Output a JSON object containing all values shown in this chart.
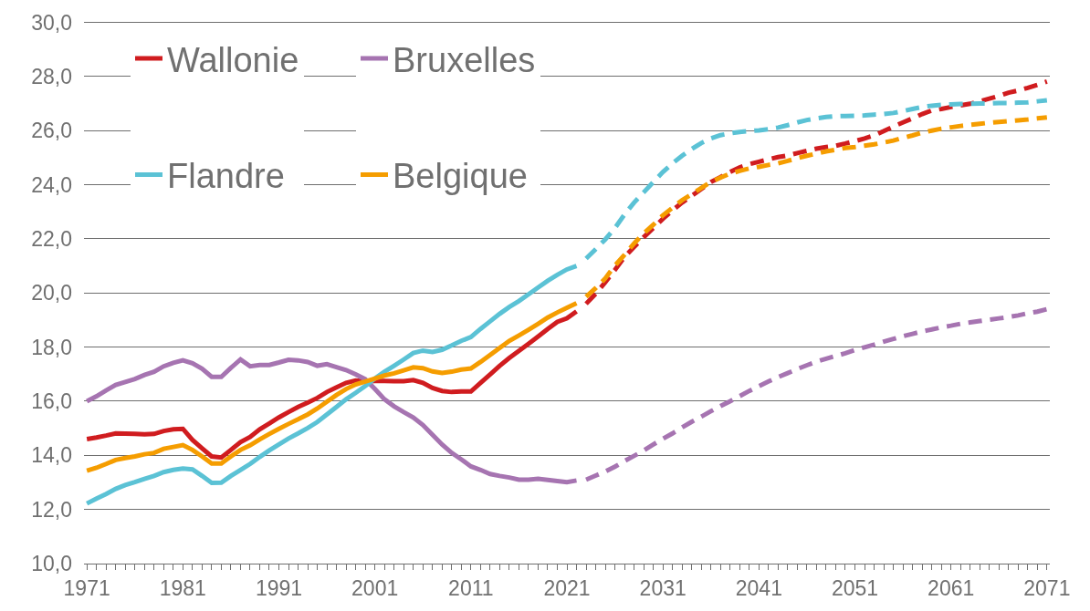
{
  "chart_data": {
    "type": "line",
    "legend": "top left",
    "grid": "y",
    "xlim": [
      1970.7,
      2071.3
    ],
    "ylim": [
      10,
      30.05
    ],
    "xticks": [
      1971,
      {
        "value": 1972,
        "label": null
      },
      {
        "value": 1973,
        "label": null
      },
      {
        "value": 1974,
        "label": null
      },
      {
        "value": 1975,
        "label": null
      },
      {
        "value": 1976,
        "label": null
      },
      {
        "value": 1977,
        "label": null
      },
      {
        "value": 1978,
        "label": null
      },
      {
        "value": 1979,
        "label": null
      },
      {
        "value": 1980,
        "label": null
      },
      1981,
      {
        "value": 1982,
        "label": null
      },
      {
        "value": 1983,
        "label": null
      },
      {
        "value": 1984,
        "label": null
      },
      {
        "value": 1985,
        "label": null
      },
      {
        "value": 1986,
        "label": null
      },
      {
        "value": 1987,
        "label": null
      },
      {
        "value": 1988,
        "label": null
      },
      {
        "value": 1989,
        "label": null
      },
      {
        "value": 1990,
        "label": null
      },
      1991,
      {
        "value": 1992,
        "label": null
      },
      {
        "value": 1993,
        "label": null
      },
      {
        "value": 1994,
        "label": null
      },
      {
        "value": 1995,
        "label": null
      },
      {
        "value": 1996,
        "label": null
      },
      {
        "value": 1997,
        "label": null
      },
      {
        "value": 1998,
        "label": null
      },
      {
        "value": 1999,
        "label": null
      },
      {
        "value": 2000,
        "label": null
      },
      2001,
      {
        "value": 2002,
        "label": null
      },
      {
        "value": 2003,
        "label": null
      },
      {
        "value": 2004,
        "label": null
      },
      {
        "value": 2005,
        "label": null
      },
      {
        "value": 2006,
        "label": null
      },
      {
        "value": 2007,
        "label": null
      },
      {
        "value": 2008,
        "label": null
      },
      {
        "value": 2009,
        "label": null
      },
      {
        "value": 2010,
        "label": null
      },
      2011,
      {
        "value": 2012,
        "label": null
      },
      {
        "value": 2013,
        "label": null
      },
      {
        "value": 2014,
        "label": null
      },
      {
        "value": 2015,
        "label": null
      },
      {
        "value": 2016,
        "label": null
      },
      {
        "value": 2017,
        "label": null
      },
      {
        "value": 2018,
        "label": null
      },
      {
        "value": 2019,
        "label": null
      },
      {
        "value": 2020,
        "label": null
      },
      2021,
      {
        "value": 2022,
        "label": null
      },
      {
        "value": 2023,
        "label": null
      },
      {
        "value": 2024,
        "label": null
      },
      {
        "value": 2025,
        "label": null
      },
      {
        "value": 2026,
        "label": null
      },
      {
        "value": 2027,
        "label": null
      },
      {
        "value": 2028,
        "label": null
      },
      {
        "value": 2029,
        "label": null
      },
      {
        "value": 2030,
        "label": null
      },
      2031,
      {
        "value": 2032,
        "label": null
      },
      {
        "value": 2033,
        "label": null
      },
      {
        "value": 2034,
        "label": null
      },
      {
        "value": 2035,
        "label": null
      },
      {
        "value": 2036,
        "label": null
      },
      {
        "value": 2037,
        "label": null
      },
      {
        "value": 2038,
        "label": null
      },
      {
        "value": 2039,
        "label": null
      },
      {
        "value": 2040,
        "label": null
      },
      2041,
      {
        "value": 2042,
        "label": null
      },
      {
        "value": 2043,
        "label": null
      },
      {
        "value": 2044,
        "label": null
      },
      {
        "value": 2045,
        "label": null
      },
      {
        "value": 2046,
        "label": null
      },
      {
        "value": 2047,
        "label": null
      },
      {
        "value": 2048,
        "label": null
      },
      {
        "value": 2049,
        "label": null
      },
      {
        "value": 2050,
        "label": null
      },
      2051,
      {
        "value": 2052,
        "label": null
      },
      {
        "value": 2053,
        "label": null
      },
      {
        "value": 2054,
        "label": null
      },
      {
        "value": 2055,
        "label": null
      },
      {
        "value": 2056,
        "label": null
      },
      {
        "value": 2057,
        "label": null
      },
      {
        "value": 2058,
        "label": null
      },
      {
        "value": 2059,
        "label": null
      },
      {
        "value": 2060,
        "label": null
      },
      2061,
      {
        "value": 2062,
        "label": null
      },
      {
        "value": 2063,
        "label": null
      },
      {
        "value": 2064,
        "label": null
      },
      {
        "value": 2065,
        "label": null
      },
      {
        "value": 2066,
        "label": null
      },
      {
        "value": 2067,
        "label": null
      },
      {
        "value": 2068,
        "label": null
      },
      {
        "value": 2069,
        "label": null
      },
      {
        "value": 2070,
        "label": null
      },
      2071
    ],
    "yticks": [
      {
        "value": 10,
        "label": "10,0"
      },
      {
        "value": 12,
        "label": "12,0"
      },
      {
        "value": 14,
        "label": "14,0"
      },
      {
        "value": 16,
        "label": "16,0"
      },
      {
        "value": 18,
        "label": "18,0"
      },
      {
        "value": 20,
        "label": "20,0"
      },
      {
        "value": 22,
        "label": "22,0"
      },
      {
        "value": 24,
        "label": "24,0"
      },
      {
        "value": 26,
        "label": "26,0"
      },
      {
        "value": 28,
        "label": "28,0"
      },
      {
        "value": 30,
        "label": "30,0"
      }
    ],
    "series": [
      {
        "name": "Wallonie",
        "color": "#d01c1f",
        "line_style": "solid",
        "x": [
          1971,
          1972,
          1973,
          1974,
          1975,
          1976,
          1977,
          1978,
          1979,
          1980,
          1981,
          1982,
          1983,
          1984,
          1985,
          1986,
          1987,
          1988,
          1989,
          1990,
          1991,
          1992,
          1993,
          1994,
          1995,
          1996,
          1997,
          1998,
          1999,
          2000,
          2001,
          2002,
          2003,
          2004,
          2005,
          2006,
          2007,
          2008,
          2009,
          2010,
          2011,
          2012,
          2013,
          2014,
          2015,
          2016,
          2017,
          2018,
          2019,
          2020,
          2021,
          2022
        ],
        "values": [
          14.6,
          14.66,
          14.73,
          14.81,
          14.8,
          14.79,
          14.78,
          14.79,
          14.9,
          14.96,
          14.98,
          14.57,
          14.26,
          13.96,
          13.92,
          14.2,
          14.49,
          14.68,
          14.96,
          15.18,
          15.4,
          15.6,
          15.79,
          15.95,
          16.12,
          16.34,
          16.51,
          16.68,
          16.76,
          16.73,
          16.75,
          16.75,
          16.74,
          16.74,
          16.78,
          16.68,
          16.49,
          16.38,
          16.34,
          16.36,
          16.36,
          16.68,
          16.99,
          17.31,
          17.6,
          17.86,
          18.12,
          18.39,
          18.67,
          18.93,
          19.06,
          19.32
        ]
      },
      {
        "name": "Bruxelles",
        "color": "#a674b1",
        "line_style": "solid",
        "x": [
          1971,
          1972,
          1973,
          1974,
          1975,
          1976,
          1977,
          1978,
          1979,
          1980,
          1981,
          1982,
          1983,
          1984,
          1985,
          1986,
          1987,
          1988,
          1989,
          1990,
          1991,
          1992,
          1993,
          1994,
          1995,
          1996,
          1997,
          1998,
          1999,
          2000,
          2001,
          2002,
          2003,
          2004,
          2005,
          2006,
          2007,
          2008,
          2009,
          2010,
          2011,
          2012,
          2013,
          2014,
          2015,
          2016,
          2017,
          2018,
          2019,
          2020,
          2021,
          2022
        ],
        "values": [
          16.0,
          16.18,
          16.4,
          16.6,
          16.71,
          16.82,
          16.97,
          17.09,
          17.29,
          17.42,
          17.51,
          17.4,
          17.2,
          16.9,
          16.9,
          17.23,
          17.54,
          17.29,
          17.34,
          17.34,
          17.43,
          17.53,
          17.51,
          17.45,
          17.31,
          17.37,
          17.26,
          17.15,
          16.99,
          16.81,
          16.45,
          16.07,
          15.81,
          15.6,
          15.4,
          15.12,
          14.76,
          14.4,
          14.09,
          13.85,
          13.59,
          13.46,
          13.31,
          13.24,
          13.18,
          13.1,
          13.1,
          13.13,
          13.09,
          13.05,
          13.01,
          13.07
        ]
      },
      {
        "name": "Flandre",
        "color": "#5bc2d5",
        "line_style": "solid",
        "x": [
          1971,
          1972,
          1973,
          1974,
          1975,
          1976,
          1977,
          1978,
          1979,
          1980,
          1981,
          1982,
          1983,
          1984,
          1985,
          1986,
          1987,
          1988,
          1989,
          1990,
          1991,
          1992,
          1993,
          1994,
          1995,
          1996,
          1997,
          1998,
          1999,
          2000,
          2001,
          2002,
          2003,
          2004,
          2005,
          2006,
          2007,
          2008,
          2009,
          2010,
          2011,
          2012,
          2013,
          2014,
          2015,
          2016,
          2017,
          2018,
          2019,
          2020,
          2021,
          2022
        ],
        "values": [
          12.22,
          12.4,
          12.57,
          12.76,
          12.9,
          13.01,
          13.13,
          13.24,
          13.38,
          13.46,
          13.51,
          13.48,
          13.24,
          12.98,
          12.99,
          13.24,
          13.46,
          13.68,
          13.94,
          14.18,
          14.4,
          14.62,
          14.81,
          15.01,
          15.23,
          15.51,
          15.79,
          16.07,
          16.31,
          16.56,
          16.84,
          17.09,
          17.31,
          17.54,
          17.78,
          17.87,
          17.82,
          17.9,
          18.06,
          18.23,
          18.37,
          18.67,
          18.95,
          19.23,
          19.48,
          19.7,
          19.95,
          20.2,
          20.45,
          20.67,
          20.87,
          21.0
        ]
      },
      {
        "name": "Belgique",
        "color": "#f59d00",
        "line_style": "solid",
        "x": [
          1971,
          1972,
          1973,
          1974,
          1975,
          1976,
          1977,
          1978,
          1979,
          1980,
          1981,
          1982,
          1983,
          1984,
          1985,
          1986,
          1987,
          1988,
          1989,
          1990,
          1991,
          1992,
          1993,
          1994,
          1995,
          1996,
          1997,
          1998,
          1999,
          2000,
          2001,
          2002,
          2003,
          2004,
          2005,
          2006,
          2007,
          2008,
          2009,
          2010,
          2011,
          2012,
          2013,
          2014,
          2015,
          2016,
          2017,
          2018,
          2019,
          2020,
          2021,
          2022
        ],
        "values": [
          13.43,
          13.54,
          13.68,
          13.83,
          13.9,
          13.96,
          14.04,
          14.09,
          14.24,
          14.31,
          14.38,
          14.2,
          13.96,
          13.7,
          13.7,
          13.96,
          14.2,
          14.37,
          14.59,
          14.79,
          14.98,
          15.16,
          15.33,
          15.51,
          15.73,
          15.98,
          16.23,
          16.45,
          16.62,
          16.73,
          16.84,
          16.95,
          17.03,
          17.14,
          17.25,
          17.22,
          17.1,
          17.04,
          17.09,
          17.17,
          17.21,
          17.45,
          17.71,
          17.97,
          18.23,
          18.43,
          18.64,
          18.86,
          19.09,
          19.28,
          19.45,
          19.62
        ]
      },
      {
        "color": "#d01c1f",
        "line_style": "dashed",
        "x": [
          2023,
          2024,
          2025,
          2026,
          2027,
          2028,
          2029,
          2030,
          2031,
          2032,
          2033,
          2034,
          2035,
          2036,
          2037,
          2038,
          2039,
          2040,
          2041,
          2042,
          2043,
          2044,
          2045,
          2046,
          2047,
          2048,
          2049,
          2050,
          2051,
          2052,
          2053,
          2054,
          2055,
          2056,
          2057,
          2058,
          2059,
          2060,
          2061,
          2062,
          2063,
          2064,
          2065,
          2066,
          2067,
          2068,
          2069,
          2070,
          2071
        ],
        "values": [
          19.6,
          19.97,
          20.4,
          20.85,
          21.33,
          21.7,
          22.06,
          22.4,
          22.74,
          23.05,
          23.34,
          23.59,
          23.84,
          24.1,
          24.28,
          24.47,
          24.64,
          24.76,
          24.85,
          24.94,
          25.02,
          25.08,
          25.17,
          25.25,
          25.33,
          25.39,
          25.44,
          25.52,
          25.61,
          25.71,
          25.82,
          25.98,
          26.15,
          26.3,
          26.45,
          26.61,
          26.74,
          26.8,
          26.87,
          26.93,
          26.99,
          27.08,
          27.18,
          27.28,
          27.4,
          27.48,
          27.58,
          27.69,
          27.81
        ]
      },
      {
        "color": "#a674b1",
        "line_style": "dashed",
        "x": [
          2023,
          2024,
          2025,
          2026,
          2027,
          2028,
          2029,
          2030,
          2031,
          2032,
          2033,
          2034,
          2035,
          2036,
          2037,
          2038,
          2039,
          2040,
          2041,
          2042,
          2043,
          2044,
          2045,
          2046,
          2047,
          2048,
          2049,
          2050,
          2051,
          2052,
          2053,
          2054,
          2055,
          2056,
          2057,
          2058,
          2059,
          2060,
          2061,
          2062,
          2063,
          2064,
          2065,
          2066,
          2067,
          2068,
          2069,
          2070,
          2071
        ],
        "values": [
          13.1,
          13.25,
          13.4,
          13.58,
          13.79,
          13.98,
          14.18,
          14.4,
          14.61,
          14.81,
          15.03,
          15.24,
          15.43,
          15.63,
          15.82,
          16.0,
          16.19,
          16.38,
          16.56,
          16.73,
          16.89,
          17.04,
          17.19,
          17.33,
          17.46,
          17.57,
          17.67,
          17.77,
          17.89,
          17.99,
          18.09,
          18.2,
          18.3,
          18.4,
          18.49,
          18.58,
          18.65,
          18.73,
          18.79,
          18.86,
          18.91,
          18.96,
          19.01,
          19.06,
          19.11,
          19.17,
          19.25,
          19.31,
          19.4
        ]
      },
      {
        "color": "#5bc2d5",
        "line_style": "dashed",
        "x": [
          2023,
          2024,
          2025,
          2026,
          2027,
          2028,
          2029,
          2030,
          2031,
          2032,
          2033,
          2034,
          2035,
          2036,
          2037,
          2038,
          2039,
          2040,
          2041,
          2042,
          2043,
          2044,
          2045,
          2046,
          2047,
          2048,
          2049,
          2050,
          2051,
          2052,
          2053,
          2054,
          2055,
          2056,
          2057,
          2058,
          2059,
          2060,
          2061,
          2062,
          2063,
          2064,
          2065,
          2066,
          2067,
          2068,
          2069,
          2070,
          2071
        ],
        "values": [
          21.27,
          21.62,
          21.98,
          22.4,
          22.9,
          23.34,
          23.72,
          24.1,
          24.47,
          24.79,
          25.07,
          25.32,
          25.54,
          25.71,
          25.83,
          25.9,
          25.95,
          25.98,
          26.01,
          26.05,
          26.11,
          26.2,
          26.3,
          26.39,
          26.45,
          26.5,
          26.53,
          26.54,
          26.55,
          26.56,
          26.59,
          26.61,
          26.65,
          26.72,
          26.8,
          26.87,
          26.92,
          26.95,
          26.97,
          26.98,
          26.99,
          27.0,
          27.0,
          27.02,
          27.02,
          27.03,
          27.04,
          27.08,
          27.12
        ]
      },
      {
        "color": "#f59d00",
        "line_style": "dashed",
        "x": [
          2023,
          2024,
          2025,
          2026,
          2027,
          2028,
          2029,
          2030,
          2031,
          2032,
          2033,
          2034,
          2035,
          2036,
          2037,
          2038,
          2039,
          2040,
          2041,
          2042,
          2043,
          2044,
          2045,
          2046,
          2047,
          2048,
          2049,
          2050,
          2051,
          2052,
          2053,
          2054,
          2055,
          2056,
          2057,
          2058,
          2059,
          2060,
          2061,
          2062,
          2063,
          2064,
          2065,
          2066,
          2067,
          2068,
          2069,
          2070,
          2071
        ],
        "values": [
          19.86,
          20.18,
          20.54,
          21.01,
          21.41,
          21.83,
          22.2,
          22.52,
          22.87,
          23.15,
          23.43,
          23.65,
          23.88,
          24.1,
          24.26,
          24.41,
          24.51,
          24.6,
          24.66,
          24.73,
          24.79,
          24.88,
          24.98,
          25.07,
          25.15,
          25.23,
          25.29,
          25.36,
          25.39,
          25.44,
          25.49,
          25.56,
          25.63,
          25.73,
          25.82,
          25.92,
          26.0,
          26.07,
          26.12,
          26.17,
          26.21,
          26.25,
          26.29,
          26.32,
          26.35,
          26.38,
          26.41,
          26.45,
          26.49
        ]
      }
    ]
  }
}
